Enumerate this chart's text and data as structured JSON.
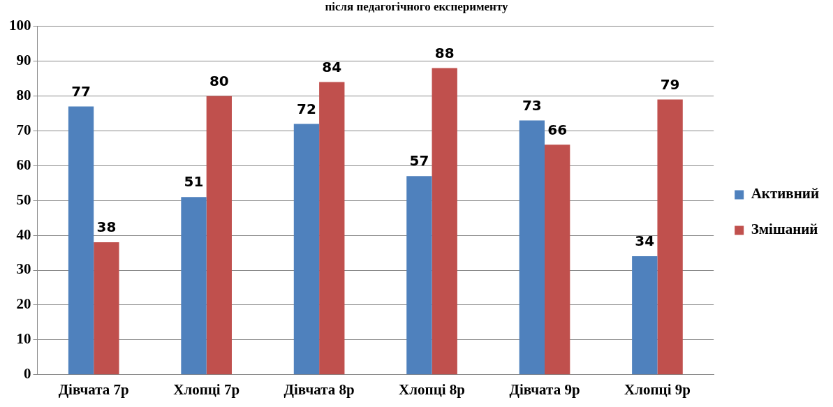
{
  "chart_data": {
    "type": "bar",
    "title": "після педагогічного експерименту",
    "categories": [
      "Дівчата 7р",
      "Хлопці 7р",
      "Дівчата 8р",
      "Хлопці 8р",
      "Дівчата 9р",
      "Хлопці 9р"
    ],
    "series": [
      {
        "name": "Активний",
        "color": "#4f81bd",
        "values": [
          77,
          51,
          72,
          57,
          73,
          34
        ]
      },
      {
        "name": "Змішаний",
        "color": "#c0504d",
        "values": [
          38,
          80,
          84,
          88,
          66,
          79
        ]
      }
    ],
    "ylim": [
      0,
      100
    ],
    "yticks": [
      0,
      10,
      20,
      30,
      40,
      50,
      60,
      70,
      80,
      90,
      100
    ],
    "grid": "y",
    "legend": "right",
    "data_labels": true
  }
}
